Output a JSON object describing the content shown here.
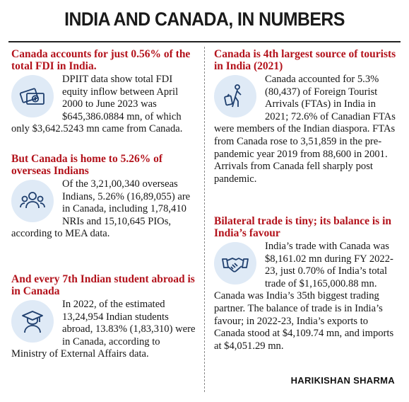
{
  "title": "INDIA AND CANADA, IN NUMBERS",
  "sections": [
    {
      "heading": "Canada accounts for just 0.56% of the total FDI in India.",
      "body": "DPIIT data show total FDI equity inflow between April 2000 to June 2023 was $645,386.0884 mn, of which only $3,642.5243 mn came from Canada.",
      "icon": "money-icon"
    },
    {
      "heading": "But Canada is home to 5.26% of overseas Indians",
      "body": "Of the 3,21,00,340 overseas Indians, 5.26% (16,89,055) are in Canada, including 1,78,410 NRIs and 15,10,645 PIOs, according to MEA data.",
      "icon": "people-group-icon"
    },
    {
      "heading": "And every 7th Indian student abroad is in Canada",
      "body": "In 2022, of the estimated 13,24,954 Indian students abroad, 13.83% (1,83,310) were in Canada, according to Ministry of External Affairs data.",
      "icon": "graduate-icon"
    },
    {
      "heading": "Canada is 4th largest source of tourists in India (2021)",
      "body": "Canada accounted for 5.3% (80,437) of Foreign Tourist Arrivals (FTAs) in India in 2021; 72.6% of Canadian FTAs were members of the Indian diaspora. FTAs from Canada rose to 3,51,859 in the pre-pandemic year 2019 from 88,600 in 2001. Arrivals from Canada fell sharply post pandemic.",
      "icon": "traveller-icon"
    },
    {
      "heading": "Bilateral trade is tiny; its balance is in India’s favour",
      "body": "India’s trade with Canada was $8,161.02 mn during FY 2022-23, just 0.70% of India’s total trade of $1,165,000.88 mn. Canada was India’s 35th biggest trading partner. The balance of trade is in India’s favour; in 2022-23, India’s exports to Canada stood at $4,109.74 mn, and imports at $4,051.29 mn.",
      "icon": "handshake-icon"
    }
  ],
  "byline": "HARIKISHAN SHARMA",
  "colors": {
    "heading": "#b3121b",
    "icon_bg": "#dfeaf6",
    "icon_stroke": "#1f3f6e"
  }
}
